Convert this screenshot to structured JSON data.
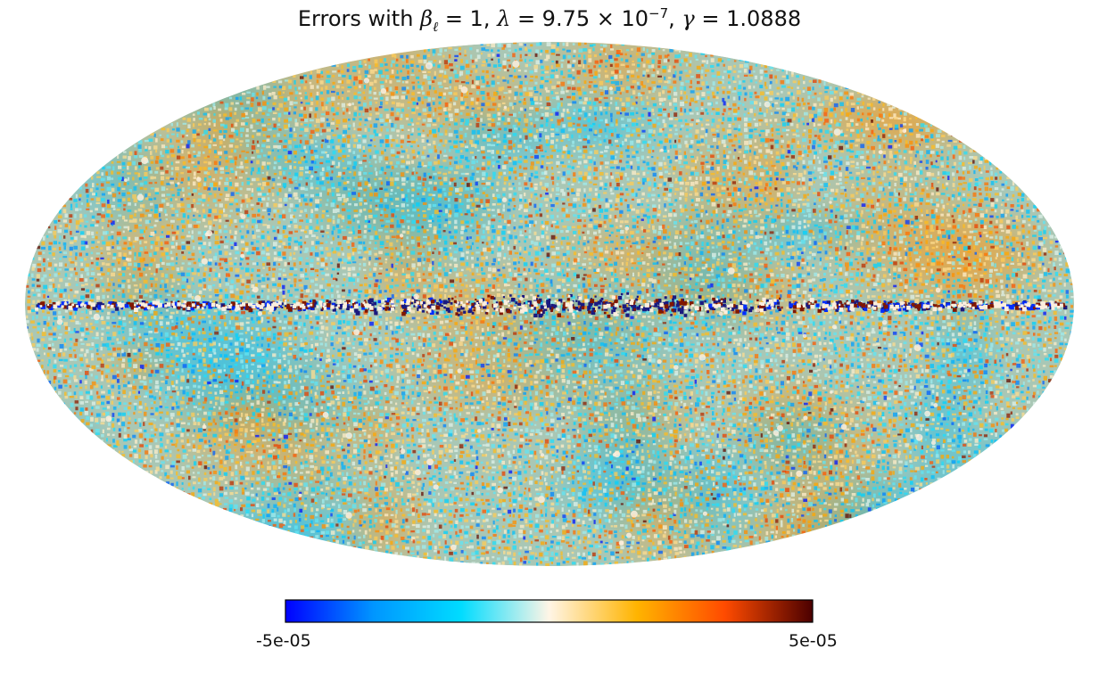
{
  "chart_data": {
    "type": "heatmap",
    "projection": "mollweide",
    "title": {
      "prefix": "Errors with ",
      "beta_symbol": "β",
      "beta_subscript": "ℓ",
      "beta_value": " = 1, ",
      "lambda_symbol": "λ",
      "lambda_value": " = 9.75 × 10",
      "lambda_exponent": "−7",
      "gamma_sep": ", ",
      "gamma_symbol": "γ",
      "gamma_value": " = 1.0888"
    },
    "colorbar": {
      "min": -5e-05,
      "max": 5e-05,
      "min_label": "-5e-05",
      "max_label": "5e-05",
      "colormap": [
        "#0000ff",
        "#0096ff",
        "#00dcff",
        "#fff5e6",
        "#ffb400",
        "#ff4b00",
        "#4b0000"
      ],
      "orientation": "horizontal"
    },
    "colors": {
      "background": "#ffffff",
      "negative_field": "#5fc8d8",
      "positive_field": "#e8a84a",
      "galactic_plane_dark": "#1a1a80",
      "point_sources": "#fbeede"
    }
  }
}
